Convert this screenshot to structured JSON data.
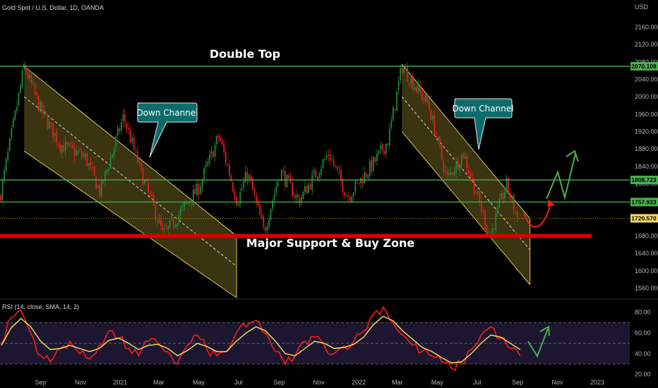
{
  "header": {
    "title": "Gold Spot / U.S. Dollar, 1D, OANDA",
    "currency": "USD"
  },
  "annotations": {
    "double_top": "Double Top",
    "support_zone": "Major Support & Buy Zone",
    "down_channel_1": "Down Channel",
    "down_channel_2": "Down Channel"
  },
  "colors": {
    "background": "#000000",
    "candle_up": "#1e8a3a",
    "candle_down": "#e01f1f",
    "channel_fill": "#4d4515",
    "channel_line": "#d8c85a",
    "green_level": "#4caf50",
    "support_red": "#d40000",
    "callout": "#0d6b6b",
    "rsi_line": "#ff1a1a",
    "rsi_ma": "#f5e663",
    "arrow_red": "#ff1a1a",
    "arrow_green": "#4caf50"
  },
  "chart_data": [
    {
      "type": "line",
      "title": "Gold Spot / U.S. Dollar, 1D, OANDA",
      "ylabel": "USD",
      "ylim": [
        1538,
        2190
      ],
      "yticks": [
        1560,
        1600,
        1640,
        1680,
        1720,
        1760,
        1800,
        1840,
        1880,
        1920,
        1960,
        2000,
        2040,
        2080,
        2120,
        2160
      ],
      "xtick_labels": [
        "Sep",
        "Nov",
        "2021",
        "Mar",
        "May",
        "Jul",
        "Sep",
        "Nov",
        "2022",
        "Mar",
        "May",
        "Jul",
        "Sep",
        "Nov",
        "2023"
      ],
      "x_dates": [
        "2020-07-01",
        "2020-08-07",
        "2020-09-01",
        "2020-10-01",
        "2020-11-09",
        "2020-12-01",
        "2021-01-06",
        "2021-02-01",
        "2021-03-08",
        "2021-04-01",
        "2021-05-01",
        "2021-06-01",
        "2021-06-29",
        "2021-07-15",
        "2021-08-09",
        "2021-09-03",
        "2021-10-01",
        "2021-11-16",
        "2021-12-15",
        "2022-01-25",
        "2022-02-15",
        "2022-03-08",
        "2022-04-18",
        "2022-05-16",
        "2022-06-10",
        "2022-07-21",
        "2022-08-15",
        "2022-09-01"
      ],
      "series": [
        {
          "name": "",
          "values": [
            1770,
            2070,
            1970,
            1890,
            1860,
            1780,
            1955,
            1830,
            1680,
            1730,
            1790,
            1910,
            1760,
            1825,
            1690,
            1830,
            1760,
            1870,
            1770,
            1850,
            1900,
            2070,
            1980,
            1810,
            1870,
            1680,
            1800,
            1720
          ]
        }
      ],
      "horizontal_levels": [
        {
          "label": "2070.108",
          "value": 2070.108
        },
        {
          "label": "1808.723",
          "value": 1808.723
        },
        {
          "label": "1757.933",
          "value": 1757.933
        },
        {
          "label": "1720.570",
          "value": 1720.57
        }
      ],
      "support_level": 1680
    },
    {
      "type": "line",
      "title": "RSI (14, close, SMA, 14, 2)",
      "ylim": [
        15,
        90
      ],
      "yticks": [
        20,
        40,
        60,
        80
      ],
      "bands": [
        30,
        50,
        70
      ],
      "series": [
        {
          "name": "RSI",
          "values": [
            50,
            75,
            82,
            60,
            38,
            32,
            45,
            52,
            40,
            35,
            48,
            62,
            55,
            45,
            38,
            52,
            50,
            42,
            30,
            48,
            58,
            44,
            38,
            42,
            60,
            66,
            72,
            60,
            42,
            30,
            38,
            52,
            56,
            48,
            40,
            47,
            52,
            62,
            78,
            85,
            70,
            58,
            48,
            42,
            38,
            32,
            26,
            30,
            44,
            58,
            66,
            55,
            45,
            38
          ]
        },
        {
          "name": "SMA",
          "values": [
            48,
            65,
            74,
            66,
            52,
            44,
            45,
            48,
            45,
            42,
            45,
            53,
            55,
            50,
            44,
            48,
            49,
            45,
            38,
            43,
            50,
            47,
            42,
            42,
            52,
            60,
            66,
            62,
            52,
            40,
            38,
            45,
            52,
            50,
            45,
            46,
            49,
            56,
            68,
            76,
            72,
            62,
            54,
            46,
            42,
            36,
            31,
            32,
            40,
            50,
            58,
            56,
            50,
            44
          ]
        }
      ],
      "rsi_x_dates": [
        "2020-07-01",
        "2022-09-05"
      ]
    }
  ]
}
